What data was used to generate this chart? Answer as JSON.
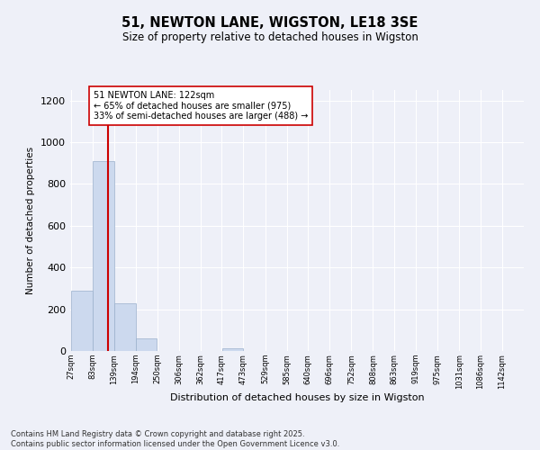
{
  "title": "51, NEWTON LANE, WIGSTON, LE18 3SE",
  "subtitle": "Size of property relative to detached houses in Wigston",
  "xlabel": "Distribution of detached houses by size in Wigston",
  "ylabel": "Number of detached properties",
  "bins": [
    27,
    83,
    139,
    194,
    250,
    306,
    362,
    417,
    473,
    529,
    585,
    640,
    696,
    752,
    808,
    863,
    919,
    975,
    1031,
    1086,
    1142
  ],
  "counts": [
    290,
    910,
    230,
    60,
    0,
    0,
    0,
    12,
    0,
    0,
    0,
    0,
    0,
    0,
    0,
    0,
    0,
    0,
    0,
    0
  ],
  "bar_color": "#ccd9ee",
  "bar_edge_color": "#9ab0cc",
  "vline_x": 122,
  "vline_color": "#cc0000",
  "annotation_text": "51 NEWTON LANE: 122sqm\n← 65% of detached houses are smaller (975)\n33% of semi-detached houses are larger (488) →",
  "annotation_box_color": "#ffffff",
  "annotation_box_edge": "#cc0000",
  "ylim": [
    0,
    1250
  ],
  "yticks": [
    0,
    200,
    400,
    600,
    800,
    1000,
    1200
  ],
  "footer": "Contains HM Land Registry data © Crown copyright and database right 2025.\nContains public sector information licensed under the Open Government Licence v3.0.",
  "background_color": "#eef0f8",
  "tick_labels": [
    "27sqm",
    "83sqm",
    "139sqm",
    "194sqm",
    "250sqm",
    "306sqm",
    "362sqm",
    "417sqm",
    "473sqm",
    "529sqm",
    "585sqm",
    "640sqm",
    "696sqm",
    "752sqm",
    "808sqm",
    "863sqm",
    "919sqm",
    "975sqm",
    "1031sqm",
    "1086sqm",
    "1142sqm"
  ],
  "figsize": [
    6.0,
    5.0
  ],
  "dpi": 100
}
